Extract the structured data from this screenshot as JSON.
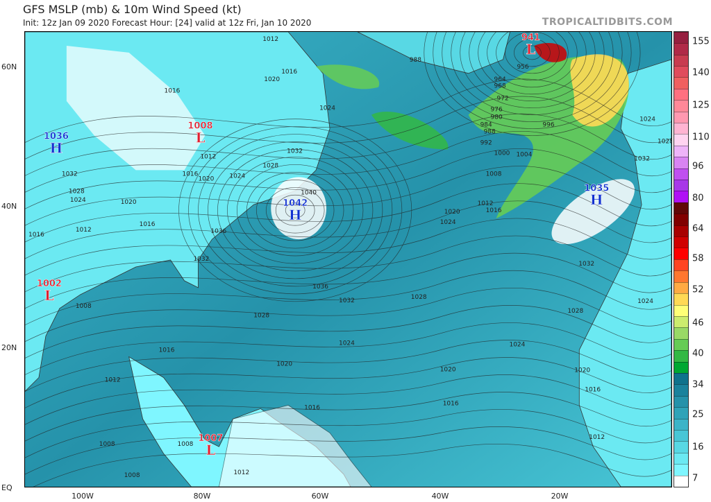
{
  "header": {
    "title": "GFS MSLP (mb) & 10m Wind Speed (kt)",
    "subtitle": "Init: 12z Jan 09 2020   Forecast Hour: [24]   valid at 12z Fri, Jan 10 2020",
    "watermark": "TROPICALTIDBITS.COM"
  },
  "axes": {
    "lat_labels": [
      "60N",
      "40N",
      "20N",
      "EQ"
    ],
    "lon_labels": [
      "100W",
      "80W",
      "60W",
      "40W",
      "20W"
    ]
  },
  "colorbar": {
    "unit": "kt",
    "ticks": [
      "155",
      "140",
      "125",
      "110",
      "96",
      "80",
      "64",
      "58",
      "52",
      "46",
      "40",
      "34",
      "25",
      "16",
      "7"
    ],
    "colors": [
      "#ffffff",
      "#7ff6ff",
      "#6be9f2",
      "#58d8e4",
      "#48c6d6",
      "#3cb4c8",
      "#2fa3b8",
      "#2592aa",
      "#1a829c",
      "#0f728c",
      "#00a832",
      "#33b844",
      "#66cc55",
      "#99d966",
      "#ccec6e",
      "#ffff77",
      "#ffd955",
      "#ffaa44",
      "#ff7730",
      "#ff4422",
      "#ff0000",
      "#d00000",
      "#a80000",
      "#800000",
      "#600808",
      "#b010f5",
      "#a838e8",
      "#c050f0",
      "#d884f2",
      "#eeb4f8",
      "#ffd4f0",
      "#ffb4d2",
      "#ff98b0",
      "#ff8898",
      "#ff7080",
      "#f06060",
      "#e04c5c",
      "#c83c50",
      "#b02a48",
      "#962040"
    ]
  },
  "pressure_centers": [
    {
      "type": "H",
      "value": "1036",
      "color": "#1030d0"
    },
    {
      "type": "L",
      "value": "1008",
      "color": "#e02030"
    },
    {
      "type": "H",
      "value": "1042",
      "color": "#1030d0"
    },
    {
      "type": "L",
      "value": "941",
      "color": "#e02030"
    },
    {
      "type": "H",
      "value": "1035",
      "color": "#1030d0"
    },
    {
      "type": "L",
      "value": "1002",
      "color": "#e02030"
    },
    {
      "type": "L",
      "value": "1007",
      "color": "#e02030"
    }
  ],
  "isobar_labels": [
    "1012",
    "1016",
    "1020",
    "1016",
    "1024",
    "1012",
    "1028",
    "1032",
    "1016",
    "1020",
    "1024",
    "1032",
    "1028",
    "1024",
    "1020",
    "1012",
    "1016",
    "1016",
    "1036",
    "1040",
    "1032",
    "1036",
    "1032",
    "1028",
    "1024",
    "1008",
    "1016",
    "1012",
    "1020",
    "1016",
    "1008",
    "1008",
    "1008",
    "1012",
    "1012",
    "1016",
    "1020",
    "1024",
    "1028",
    "1024",
    "1032",
    "1028",
    "1020",
    "1016",
    "1028",
    "1024",
    "1032",
    "1020",
    "1024",
    "1012",
    "1016",
    "1008",
    "1004",
    "1000",
    "992",
    "996",
    "988",
    "984",
    "980",
    "976",
    "972",
    "968",
    "964",
    "956",
    "988"
  ]
}
